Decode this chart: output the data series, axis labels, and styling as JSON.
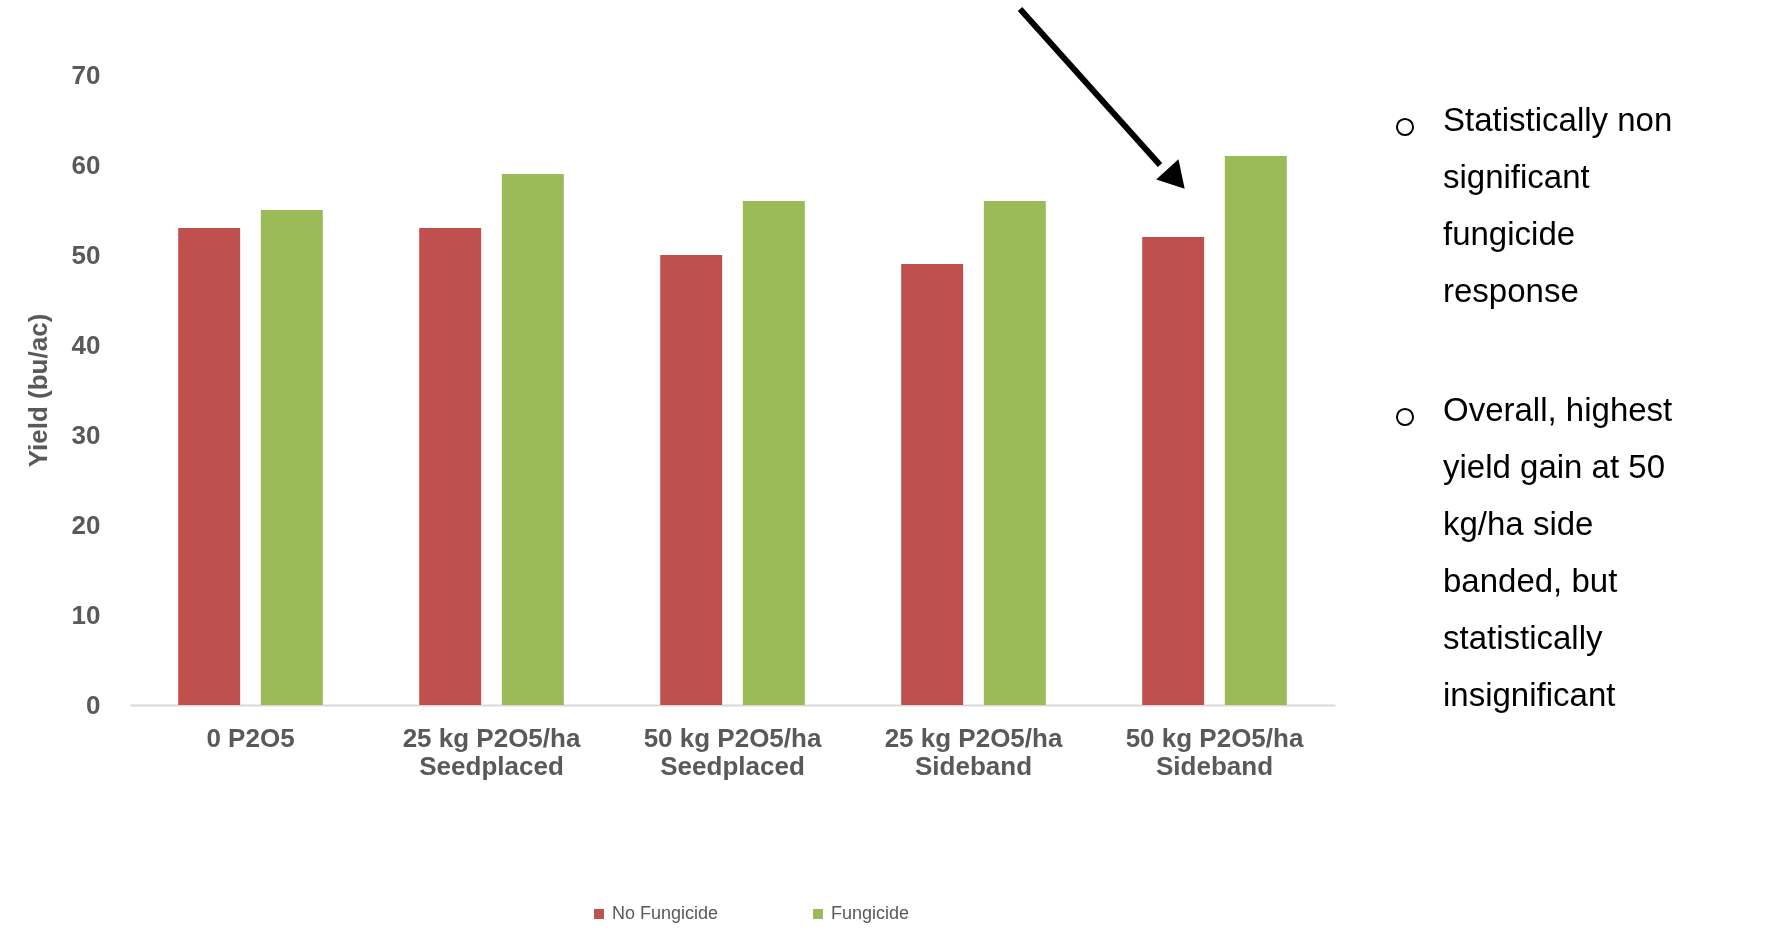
{
  "chart_data": {
    "type": "bar",
    "ylabel": "Yield (bu/ac)",
    "categories": [
      "0 P2O5",
      "25 kg P2O5/ha Seedplaced",
      "50 kg P2O5/ha Seedplaced",
      "25 kg P2O5/ha Sideband",
      "50 kg P2O5/ha Sideband"
    ],
    "series": [
      {
        "name": "No Fungicide",
        "color": "#c0504d",
        "values": [
          53,
          53,
          50,
          49,
          52
        ]
      },
      {
        "name": "Fungicide",
        "color": "#9bbb59",
        "values": [
          55,
          59,
          56,
          56,
          61
        ]
      }
    ],
    "ylim": [
      0,
      70
    ],
    "yticks": [
      0,
      10,
      20,
      30,
      40,
      50,
      60,
      70
    ],
    "grid": false,
    "legend": "bottom",
    "annotations": [
      "Statistically non significant fungicide response",
      "Overall, highest yield gain at 50 kg/ha side banded, but statistically insignificant"
    ]
  }
}
